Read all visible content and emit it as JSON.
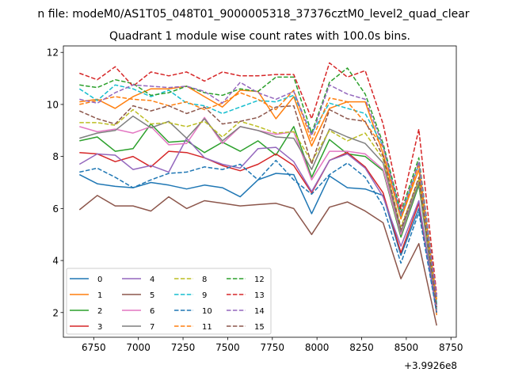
{
  "suptitle": "n file: modeM0/AS1T05_048T01_9000005318_37376cztM0_level2_quad_clear",
  "chart_data": {
    "type": "line",
    "title": "Quadrant 1 module wise count rates with 100.0s bins.",
    "xlabel": "",
    "ylabel": "",
    "x_offset_label": "+3.9926e8",
    "xlim": [
      6580,
      8780
    ],
    "ylim": [
      1.05,
      12.25
    ],
    "xticks": [
      6750,
      7000,
      7250,
      7500,
      7750,
      8000,
      8250,
      8500,
      8750
    ],
    "yticks": [
      2,
      4,
      6,
      8,
      10,
      12
    ],
    "grid": false,
    "legend": {
      "placement": "lower-left",
      "columns": 4
    },
    "x": [
      6670,
      6770,
      6870,
      6970,
      7070,
      7170,
      7270,
      7370,
      7470,
      7570,
      7670,
      7770,
      7870,
      7970,
      8070,
      8170,
      8270,
      8370,
      8470,
      8570,
      8670
    ],
    "series": [
      {
        "name": "0",
        "color": "#1f77b4",
        "style": "solid",
        "values": [
          7.3,
          6.95,
          6.85,
          6.8,
          7.0,
          6.9,
          6.75,
          6.9,
          6.8,
          6.45,
          7.1,
          7.35,
          7.3,
          5.8,
          7.25,
          6.8,
          6.75,
          6.5,
          4.2,
          6.0,
          2.3
        ]
      },
      {
        "name": "1",
        "color": "#ff7f0e",
        "style": "solid",
        "values": [
          10.1,
          10.2,
          9.85,
          10.3,
          10.6,
          10.6,
          10.7,
          10.3,
          9.9,
          10.55,
          10.5,
          9.45,
          10.3,
          8.4,
          9.85,
          10.1,
          10.1,
          8.1,
          5.6,
          7.5,
          1.9
        ]
      },
      {
        "name": "2",
        "color": "#2ca02c",
        "style": "solid",
        "values": [
          8.6,
          8.75,
          8.2,
          8.3,
          9.25,
          8.55,
          8.6,
          8.15,
          8.55,
          8.2,
          8.6,
          8.05,
          9.15,
          7.2,
          8.65,
          8.1,
          8.0,
          7.45,
          4.9,
          6.9,
          2.1
        ]
      },
      {
        "name": "3",
        "color": "#d62728",
        "style": "solid",
        "values": [
          8.15,
          8.1,
          7.8,
          8.0,
          7.6,
          8.2,
          8.15,
          7.95,
          7.65,
          7.45,
          7.7,
          8.1,
          7.65,
          6.6,
          7.85,
          8.15,
          7.6,
          6.6,
          4.3,
          6.2,
          2.0
        ]
      },
      {
        "name": "4",
        "color": "#9467bd",
        "style": "solid",
        "values": [
          7.7,
          8.1,
          8.05,
          7.5,
          7.65,
          7.4,
          8.7,
          7.95,
          7.7,
          7.55,
          8.3,
          8.35,
          7.8,
          6.65,
          7.85,
          8.1,
          7.55,
          6.45,
          4.55,
          6.3,
          2.0
        ]
      },
      {
        "name": "5",
        "color": "#8c564b",
        "style": "solid",
        "values": [
          5.95,
          6.5,
          6.1,
          6.1,
          5.9,
          6.45,
          6.0,
          6.3,
          6.2,
          6.1,
          6.15,
          6.2,
          6.0,
          5.0,
          6.05,
          6.25,
          5.9,
          5.45,
          3.3,
          4.65,
          1.5
        ]
      },
      {
        "name": "6",
        "color": "#e377c2",
        "style": "solid",
        "values": [
          9.15,
          8.95,
          9.05,
          8.9,
          9.15,
          8.45,
          8.5,
          9.5,
          8.5,
          9.15,
          9.0,
          8.85,
          8.95,
          7.1,
          8.2,
          8.2,
          8.1,
          7.5,
          5.0,
          7.0,
          2.2
        ]
      },
      {
        "name": "7",
        "color": "#7f7f7f",
        "style": "solid",
        "values": [
          8.7,
          8.9,
          9.0,
          9.55,
          9.1,
          9.35,
          8.7,
          9.45,
          8.6,
          9.15,
          9.0,
          8.75,
          8.7,
          7.5,
          9.05,
          8.75,
          8.5,
          7.75,
          5.1,
          7.0,
          2.3
        ]
      },
      {
        "name": "8",
        "color": "#bcbd22",
        "style": "dashed",
        "values": [
          9.3,
          9.3,
          9.2,
          9.8,
          9.25,
          9.3,
          9.15,
          9.35,
          8.75,
          9.35,
          9.15,
          8.9,
          8.95,
          7.8,
          9.0,
          8.6,
          8.9,
          7.9,
          5.3,
          7.1,
          2.4
        ]
      },
      {
        "name": "9",
        "color": "#17becf",
        "style": "dashed",
        "values": [
          10.6,
          10.15,
          10.75,
          10.6,
          10.3,
          10.55,
          10.05,
          9.95,
          9.65,
          9.9,
          10.15,
          10.1,
          10.35,
          8.9,
          10.05,
          9.85,
          9.65,
          8.4,
          5.7,
          7.7,
          2.35
        ]
      },
      {
        "name": "10",
        "color": "#1f77b4",
        "style": "dashed",
        "values": [
          7.4,
          7.55,
          7.2,
          6.8,
          7.1,
          7.35,
          7.4,
          7.6,
          7.5,
          7.7,
          7.1,
          7.85,
          7.1,
          6.55,
          7.3,
          7.75,
          7.2,
          6.1,
          3.9,
          5.85,
          2.0
        ]
      },
      {
        "name": "11",
        "color": "#ff7f0e",
        "style": "dashed",
        "values": [
          10.0,
          10.15,
          10.3,
          10.2,
          10.15,
          9.95,
          10.1,
          9.8,
          10.05,
          10.45,
          10.2,
          9.8,
          10.55,
          8.6,
          10.25,
          10.1,
          9.3,
          8.35,
          5.6,
          7.7,
          2.5
        ]
      },
      {
        "name": "12",
        "color": "#2ca02c",
        "style": "dashed",
        "values": [
          10.75,
          10.65,
          10.95,
          10.8,
          10.35,
          10.45,
          10.7,
          10.45,
          10.35,
          10.6,
          10.5,
          11.05,
          11.05,
          8.9,
          10.85,
          11.4,
          10.4,
          8.5,
          5.85,
          7.95,
          2.6
        ]
      },
      {
        "name": "13",
        "color": "#d62728",
        "style": "dashed",
        "values": [
          11.2,
          10.95,
          11.45,
          10.7,
          11.25,
          11.1,
          11.25,
          10.9,
          11.25,
          11.1,
          11.1,
          11.15,
          11.15,
          9.45,
          11.6,
          11.05,
          11.3,
          9.25,
          6.0,
          9.05,
          2.7
        ]
      },
      {
        "name": "14",
        "color": "#9467bd",
        "style": "dashed",
        "values": [
          10.2,
          10.05,
          10.45,
          10.75,
          10.7,
          10.65,
          10.7,
          10.5,
          10.05,
          10.85,
          10.45,
          10.2,
          10.5,
          8.8,
          10.75,
          10.4,
          10.2,
          8.4,
          5.75,
          7.8,
          2.6
        ]
      },
      {
        "name": "15",
        "color": "#8c564b",
        "style": "dashed",
        "values": [
          9.75,
          9.45,
          9.25,
          9.95,
          9.75,
          9.95,
          9.65,
          9.9,
          9.25,
          9.35,
          9.5,
          9.9,
          9.95,
          7.7,
          9.8,
          9.45,
          9.35,
          8.0,
          5.2,
          7.2,
          2.2
        ]
      }
    ]
  }
}
